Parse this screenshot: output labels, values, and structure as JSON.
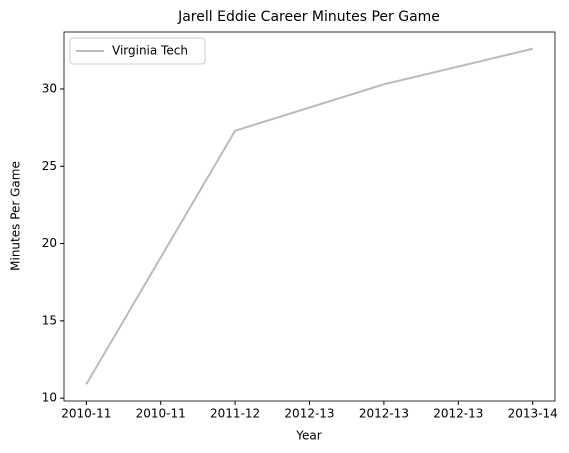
{
  "chart_data": {
    "type": "line",
    "title": "Jarell Eddie Career Minutes Per Game",
    "x_label": "Year",
    "y_label": "Minutes Per Game",
    "categories": [
      "2010-11",
      "2011-12",
      "2012-13",
      "2013-14"
    ],
    "x": [
      0,
      1,
      2,
      3
    ],
    "series": [
      {
        "name": "Virginia Tech",
        "color": "#bbbbbb",
        "values": [
          10.9,
          27.3,
          30.3,
          32.6
        ]
      }
    ],
    "xlim": [
      -0.15,
      3.15
    ],
    "xticks": [
      {
        "value": 0,
        "label": "2010-11"
      },
      {
        "value": 0.5,
        "label": "2010-11"
      },
      {
        "value": 1,
        "label": "2011-12"
      },
      {
        "value": 1.5,
        "label": "2012-13"
      },
      {
        "value": 2,
        "label": "2012-13"
      },
      {
        "value": 2.5,
        "label": "2012-13"
      },
      {
        "value": 3,
        "label": "2013-14"
      }
    ],
    "ylim": [
      9.815,
      33.685
    ],
    "yticks": [
      10,
      15,
      20,
      25,
      30
    ],
    "legend": "upper left",
    "grid": false
  }
}
